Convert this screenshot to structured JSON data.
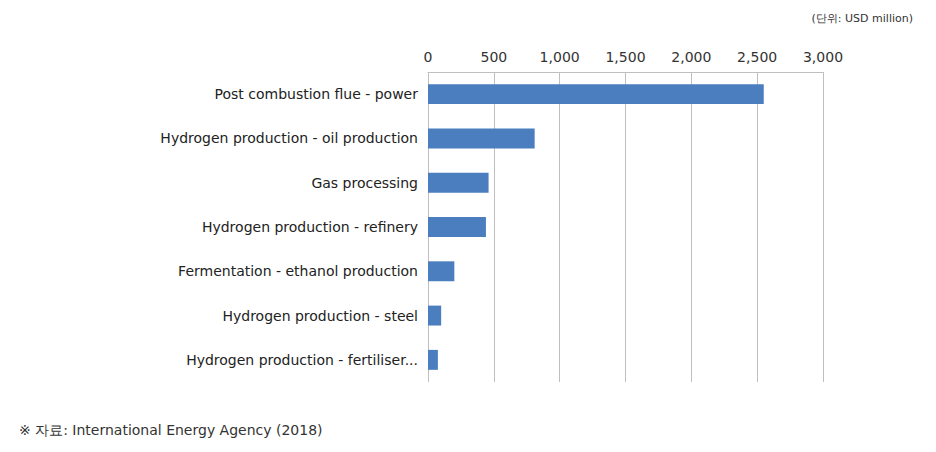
{
  "chart_data": {
    "type": "bar",
    "orientation": "horizontal",
    "categories": [
      "Post combustion flue - power",
      "Hydrogen production - oil production",
      "Gas processing",
      "Hydrogen production - refinery",
      "Fermentation - ethanol production",
      "Hydrogen production - steel",
      "Hydrogen production - fertiliser..."
    ],
    "values": [
      2550,
      810,
      460,
      440,
      200,
      100,
      75
    ],
    "color": "#4a7ebf",
    "xlim": [
      0,
      3000
    ],
    "xticks": [
      0,
      500,
      {
        "value": 1000,
        "label": "1,000"
      },
      {
        "value": 1500,
        "label": "1,500"
      },
      {
        "value": 2000,
        "label": "2,000"
      },
      {
        "value": 2500,
        "label": "2,500"
      },
      {
        "value": 3000,
        "label": "3,000"
      }
    ],
    "grid": true,
    "annotations": [
      "(단위: USD million)",
      "※ 자료: International Energy Agency (2018)"
    ]
  }
}
